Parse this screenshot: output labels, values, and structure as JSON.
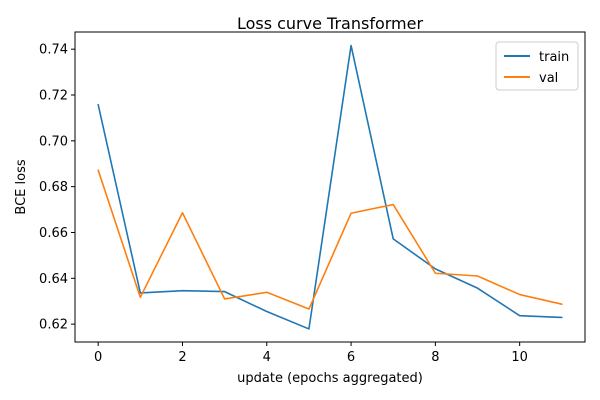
{
  "chart_data": {
    "type": "line",
    "title": "Loss curve Transformer",
    "xlabel": "update (epochs aggregated)",
    "ylabel": "BCE loss",
    "x": [
      0,
      1,
      2,
      3,
      4,
      5,
      6,
      7,
      8,
      9,
      10,
      11
    ],
    "xlim": [
      -0.55,
      11.55
    ],
    "ylim": [
      0.6122,
      0.7475
    ],
    "xticks": [
      0,
      2,
      4,
      6,
      8,
      10
    ],
    "yticks": [
      0.62,
      0.64,
      0.66,
      0.68,
      0.7,
      0.72,
      0.74
    ],
    "grid": false,
    "legend_position": "top-right",
    "series": [
      {
        "name": "train",
        "color": "#1f77b4",
        "values": [
          0.7158,
          0.6336,
          0.6346,
          0.6342,
          0.6255,
          0.6179,
          0.7416,
          0.6572,
          0.6441,
          0.6357,
          0.6237,
          0.6229
        ]
      },
      {
        "name": "val",
        "color": "#ff7f0e",
        "values": [
          0.6872,
          0.6317,
          0.6686,
          0.631,
          0.6339,
          0.6266,
          0.6684,
          0.6722,
          0.6422,
          0.641,
          0.6329,
          0.6287
        ]
      }
    ]
  }
}
